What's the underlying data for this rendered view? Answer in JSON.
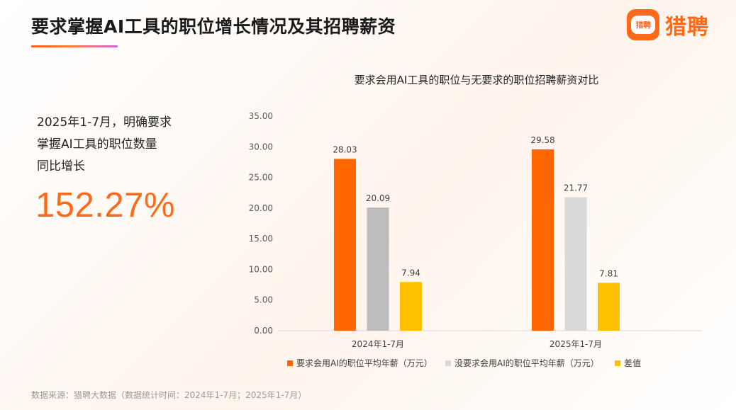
{
  "page": {
    "title": "要求掌握AI工具的职位增长情况及其招聘薪资",
    "brand": {
      "icon_text": "猎聘",
      "name": "猎聘",
      "color": "#ff6a1a"
    }
  },
  "stat": {
    "lines": [
      "2025年1-7月，明确要求",
      "掌握AI工具的职位数量",
      "同比增长"
    ],
    "value": "152.27%"
  },
  "chart_data": {
    "type": "bar",
    "title": "要求会用AI工具的职位与无要求的职位招聘薪资对比",
    "categories": [
      "2024年1-7月",
      "2025年1-7月"
    ],
    "series": [
      {
        "name": "要求会用AI的职位平均年薪（万元）",
        "values": [
          28.03,
          29.58
        ],
        "color": "#ff6600"
      },
      {
        "name": "没要求会用AI的职位平均年薪（万元）",
        "values": [
          20.09,
          21.77
        ],
        "colors": [
          "#bdbdbd",
          "#d9d9d9"
        ]
      },
      {
        "name": "差值",
        "values": [
          7.94,
          7.81
        ],
        "color": "#ffc000"
      }
    ],
    "ylim": [
      0,
      35
    ],
    "yticks": [
      "0.00",
      "5.00",
      "10.00",
      "15.00",
      "20.00",
      "25.00",
      "30.00",
      "35.00"
    ],
    "data_labels": [
      [
        "28.03",
        "20.09",
        "7.94"
      ],
      [
        "29.58",
        "21.77",
        "7.81"
      ]
    ],
    "grid": false,
    "legend": "bottom"
  },
  "footer": {
    "source": "数据来源：猎聘大数据（数据统计时间：2024年1-7月；2025年1-7月）"
  }
}
